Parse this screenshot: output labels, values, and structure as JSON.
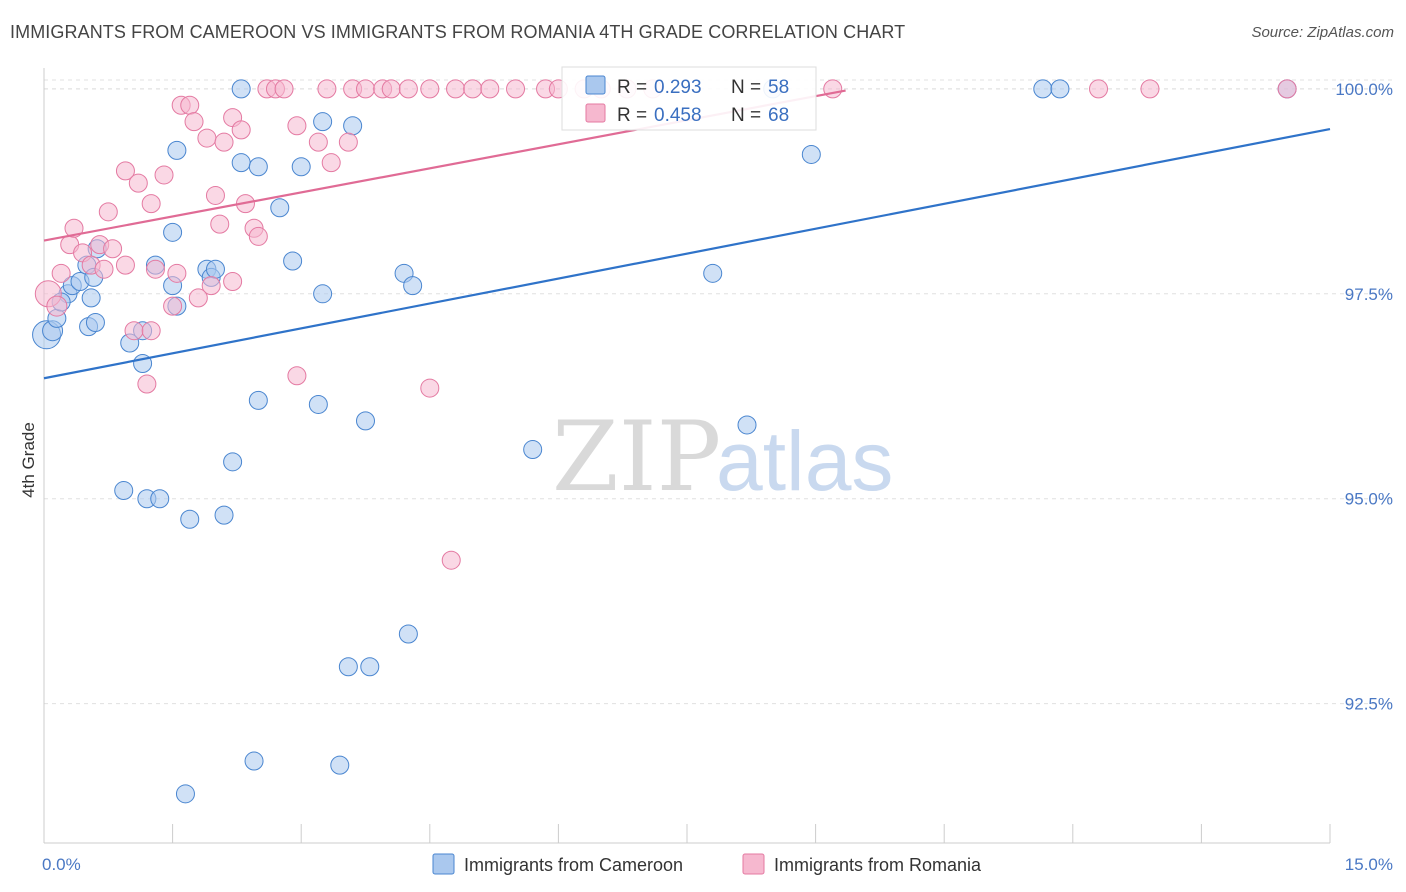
{
  "title": "IMMIGRANTS FROM CAMEROON VS IMMIGRANTS FROM ROMANIA 4TH GRADE CORRELATION CHART",
  "source": "Source: ZipAtlas.com",
  "watermark": {
    "zip": "ZIP",
    "atlas": "atlas"
  },
  "colors": {
    "cameroon_fill": "#aac8ee",
    "cameroon_stroke": "#4a86d0",
    "cameroon_line": "#2f73c9",
    "romania_fill": "#f6b8cf",
    "romania_stroke": "#e47aa2",
    "romania_line": "#e06b95",
    "tick_text": "#4a78c4",
    "grid": "#e0e0e0"
  },
  "legend_box": {
    "rows": [
      {
        "r_label": "R =",
        "r_value": "0.293",
        "n_label": "N =",
        "n_value": "58"
      },
      {
        "r_label": "R =",
        "r_value": "0.458",
        "n_label": "N =",
        "n_value": "68"
      }
    ]
  },
  "chart_data": {
    "type": "scatter",
    "title": "IMMIGRANTS FROM CAMEROON VS IMMIGRANTS FROM ROMANIA 4TH GRADE CORRELATION CHART",
    "xlabel": "",
    "ylabel": "4th Grade",
    "xlim": [
      0,
      15
    ],
    "ylim": [
      90.8,
      100.45
    ],
    "x_tick_labels": [
      "0.0%",
      "15.0%"
    ],
    "y_ticks": [
      92.5,
      95.0,
      97.5,
      100.0
    ],
    "y_tick_labels": [
      "92.5%",
      "95.0%",
      "97.5%",
      "100.0%"
    ],
    "grid": true,
    "legend_position": "bottom",
    "series": [
      {
        "name": "Immigrants from Cameroon",
        "color": "#4a86d0",
        "trend": {
          "x": [
            0,
            15
          ],
          "y": [
            96.47,
            99.51
          ]
        },
        "points": [
          {
            "x": 0.03,
            "y": 97.0,
            "s": 14
          },
          {
            "x": 0.1,
            "y": 97.05,
            "s": 10
          },
          {
            "x": 0.15,
            "y": 97.2,
            "s": 9
          },
          {
            "x": 0.28,
            "y": 97.5,
            "s": 9
          },
          {
            "x": 0.33,
            "y": 97.6,
            "s": 9
          },
          {
            "x": 0.42,
            "y": 97.65,
            "s": 9
          },
          {
            "x": 0.5,
            "y": 97.85,
            "s": 9
          },
          {
            "x": 0.58,
            "y": 97.7,
            "s": 9
          },
          {
            "x": 0.62,
            "y": 98.05,
            "s": 9
          },
          {
            "x": 0.55,
            "y": 97.45,
            "s": 9
          },
          {
            "x": 0.52,
            "y": 97.1,
            "s": 9
          },
          {
            "x": 0.6,
            "y": 97.15,
            "s": 9
          },
          {
            "x": 1.0,
            "y": 96.9,
            "s": 9
          },
          {
            "x": 1.15,
            "y": 97.05,
            "s": 9
          },
          {
            "x": 1.15,
            "y": 96.65,
            "s": 9
          },
          {
            "x": 1.3,
            "y": 97.85,
            "s": 9
          },
          {
            "x": 1.5,
            "y": 97.6,
            "s": 9
          },
          {
            "x": 1.55,
            "y": 97.35,
            "s": 9
          },
          {
            "x": 1.5,
            "y": 98.25,
            "s": 9
          },
          {
            "x": 1.55,
            "y": 99.25,
            "s": 9
          },
          {
            "x": 1.9,
            "y": 97.8,
            "s": 9
          },
          {
            "x": 1.95,
            "y": 97.7,
            "s": 9
          },
          {
            "x": 2.0,
            "y": 97.8,
            "s": 9
          },
          {
            "x": 2.3,
            "y": 99.1,
            "s": 9
          },
          {
            "x": 2.5,
            "y": 99.05,
            "s": 9
          },
          {
            "x": 2.3,
            "y": 100.0,
            "s": 9
          },
          {
            "x": 2.75,
            "y": 98.55,
            "s": 9
          },
          {
            "x": 2.9,
            "y": 97.9,
            "s": 9
          },
          {
            "x": 3.0,
            "y": 99.05,
            "s": 9
          },
          {
            "x": 3.25,
            "y": 97.5,
            "s": 9
          },
          {
            "x": 3.25,
            "y": 99.6,
            "s": 9
          },
          {
            "x": 3.6,
            "y": 99.55,
            "s": 9
          },
          {
            "x": 4.2,
            "y": 97.75,
            "s": 9
          },
          {
            "x": 4.3,
            "y": 97.6,
            "s": 9
          },
          {
            "x": 2.5,
            "y": 96.2,
            "s": 9
          },
          {
            "x": 3.2,
            "y": 96.15,
            "s": 9
          },
          {
            "x": 3.75,
            "y": 95.95,
            "s": 9
          },
          {
            "x": 2.2,
            "y": 95.45,
            "s": 9
          },
          {
            "x": 0.93,
            "y": 95.1,
            "s": 9
          },
          {
            "x": 1.2,
            "y": 95.0,
            "s": 9
          },
          {
            "x": 1.35,
            "y": 95.0,
            "s": 9
          },
          {
            "x": 1.7,
            "y": 94.75,
            "s": 9
          },
          {
            "x": 2.1,
            "y": 94.8,
            "s": 9
          },
          {
            "x": 4.25,
            "y": 93.35,
            "s": 9
          },
          {
            "x": 3.55,
            "y": 92.95,
            "s": 9
          },
          {
            "x": 3.8,
            "y": 92.95,
            "s": 9
          },
          {
            "x": 2.45,
            "y": 91.8,
            "s": 9
          },
          {
            "x": 3.45,
            "y": 91.75,
            "s": 9
          },
          {
            "x": 1.65,
            "y": 91.4,
            "s": 9
          },
          {
            "x": 5.7,
            "y": 95.6,
            "s": 9
          },
          {
            "x": 7.8,
            "y": 97.75,
            "s": 9
          },
          {
            "x": 8.2,
            "y": 95.9,
            "s": 9
          },
          {
            "x": 8.95,
            "y": 99.2,
            "s": 9
          },
          {
            "x": 8.5,
            "y": 100.0,
            "s": 9
          },
          {
            "x": 11.65,
            "y": 100.0,
            "s": 9
          },
          {
            "x": 11.85,
            "y": 100.0,
            "s": 9
          },
          {
            "x": 14.5,
            "y": 100.0,
            "s": 9
          },
          {
            "x": 0.2,
            "y": 97.4,
            "s": 9
          }
        ]
      },
      {
        "name": "Immigrants from Romania",
        "color": "#e47aa2",
        "trend": {
          "x": [
            0,
            9.35
          ],
          "y": [
            98.15,
            99.98
          ]
        },
        "points": [
          {
            "x": 0.05,
            "y": 97.5,
            "s": 13
          },
          {
            "x": 0.15,
            "y": 97.35,
            "s": 10
          },
          {
            "x": 0.2,
            "y": 97.75,
            "s": 9
          },
          {
            "x": 0.3,
            "y": 98.1,
            "s": 9
          },
          {
            "x": 0.35,
            "y": 98.3,
            "s": 9
          },
          {
            "x": 0.45,
            "y": 98.0,
            "s": 9
          },
          {
            "x": 0.55,
            "y": 97.85,
            "s": 9
          },
          {
            "x": 0.65,
            "y": 98.1,
            "s": 9
          },
          {
            "x": 0.75,
            "y": 98.5,
            "s": 9
          },
          {
            "x": 0.8,
            "y": 98.05,
            "s": 9
          },
          {
            "x": 0.7,
            "y": 97.8,
            "s": 9
          },
          {
            "x": 0.95,
            "y": 97.85,
            "s": 9
          },
          {
            "x": 0.95,
            "y": 99.0,
            "s": 9
          },
          {
            "x": 1.1,
            "y": 98.85,
            "s": 9
          },
          {
            "x": 1.25,
            "y": 98.6,
            "s": 9
          },
          {
            "x": 1.3,
            "y": 97.8,
            "s": 9
          },
          {
            "x": 1.4,
            "y": 98.95,
            "s": 9
          },
          {
            "x": 1.5,
            "y": 97.35,
            "s": 9
          },
          {
            "x": 1.55,
            "y": 97.75,
            "s": 9
          },
          {
            "x": 1.6,
            "y": 99.8,
            "s": 9
          },
          {
            "x": 1.7,
            "y": 99.8,
            "s": 9
          },
          {
            "x": 1.75,
            "y": 99.6,
            "s": 9
          },
          {
            "x": 1.9,
            "y": 99.4,
            "s": 9
          },
          {
            "x": 2.0,
            "y": 98.7,
            "s": 9
          },
          {
            "x": 2.05,
            "y": 98.35,
            "s": 9
          },
          {
            "x": 2.1,
            "y": 99.35,
            "s": 9
          },
          {
            "x": 2.2,
            "y": 99.65,
            "s": 9
          },
          {
            "x": 2.3,
            "y": 99.5,
            "s": 9
          },
          {
            "x": 2.35,
            "y": 98.6,
            "s": 9
          },
          {
            "x": 2.45,
            "y": 98.3,
            "s": 9
          },
          {
            "x": 2.5,
            "y": 98.2,
            "s": 9
          },
          {
            "x": 1.95,
            "y": 97.6,
            "s": 9
          },
          {
            "x": 1.8,
            "y": 97.45,
            "s": 9
          },
          {
            "x": 2.2,
            "y": 97.65,
            "s": 9
          },
          {
            "x": 1.05,
            "y": 97.05,
            "s": 9
          },
          {
            "x": 1.25,
            "y": 97.05,
            "s": 9
          },
          {
            "x": 1.2,
            "y": 96.4,
            "s": 9
          },
          {
            "x": 2.6,
            "y": 100.0,
            "s": 9
          },
          {
            "x": 2.7,
            "y": 100.0,
            "s": 9
          },
          {
            "x": 2.8,
            "y": 100.0,
            "s": 9
          },
          {
            "x": 2.95,
            "y": 99.55,
            "s": 9
          },
          {
            "x": 3.3,
            "y": 100.0,
            "s": 9
          },
          {
            "x": 3.2,
            "y": 99.35,
            "s": 9
          },
          {
            "x": 3.35,
            "y": 99.1,
            "s": 9
          },
          {
            "x": 3.55,
            "y": 99.35,
            "s": 9
          },
          {
            "x": 3.6,
            "y": 100.0,
            "s": 9
          },
          {
            "x": 3.75,
            "y": 100.0,
            "s": 9
          },
          {
            "x": 3.95,
            "y": 100.0,
            "s": 9
          },
          {
            "x": 4.05,
            "y": 100.0,
            "s": 9
          },
          {
            "x": 4.25,
            "y": 100.0,
            "s": 9
          },
          {
            "x": 4.5,
            "y": 100.0,
            "s": 9
          },
          {
            "x": 4.8,
            "y": 100.0,
            "s": 9
          },
          {
            "x": 5.0,
            "y": 100.0,
            "s": 9
          },
          {
            "x": 5.2,
            "y": 100.0,
            "s": 9
          },
          {
            "x": 5.5,
            "y": 100.0,
            "s": 9
          },
          {
            "x": 5.85,
            "y": 100.0,
            "s": 9
          },
          {
            "x": 6.0,
            "y": 100.0,
            "s": 9
          },
          {
            "x": 6.3,
            "y": 100.0,
            "s": 9
          },
          {
            "x": 6.5,
            "y": 100.0,
            "s": 9
          },
          {
            "x": 6.8,
            "y": 100.0,
            "s": 9
          },
          {
            "x": 7.1,
            "y": 100.0,
            "s": 9
          },
          {
            "x": 9.2,
            "y": 100.0,
            "s": 9
          },
          {
            "x": 12.3,
            "y": 100.0,
            "s": 9
          },
          {
            "x": 12.9,
            "y": 100.0,
            "s": 9
          },
          {
            "x": 14.5,
            "y": 100.0,
            "s": 9
          },
          {
            "x": 2.95,
            "y": 96.5,
            "s": 9
          },
          {
            "x": 4.5,
            "y": 96.35,
            "s": 9
          },
          {
            "x": 4.75,
            "y": 94.25,
            "s": 9
          }
        ]
      }
    ]
  }
}
